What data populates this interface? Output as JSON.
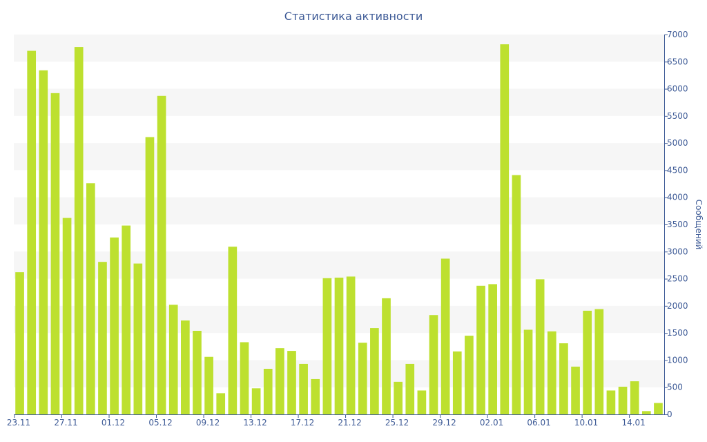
{
  "chart_data": {
    "type": "bar",
    "title": "Статистика активности",
    "ylabel": "Сообщений",
    "ylim": [
      0,
      7000
    ],
    "yticks": [
      0,
      500,
      1000,
      1500,
      2000,
      2500,
      3000,
      3500,
      4000,
      4500,
      5000,
      5500,
      6000,
      6500,
      7000
    ],
    "x_tick_labels": [
      "23.11",
      "27.11",
      "01.12",
      "05.12",
      "09.12",
      "13.12",
      "17.12",
      "21.12",
      "25.12",
      "29.12",
      "02.01",
      "06.01",
      "10.01",
      "14.01"
    ],
    "categories": [
      "23.11",
      "24.11",
      "25.11",
      "26.11",
      "27.11",
      "28.11",
      "29.11",
      "30.11",
      "01.12",
      "02.12",
      "03.12",
      "04.12",
      "05.12",
      "06.12",
      "07.12",
      "08.12",
      "09.12",
      "10.12",
      "11.12",
      "12.12",
      "13.12",
      "14.12",
      "15.12",
      "16.12",
      "17.12",
      "18.12",
      "19.12",
      "20.12",
      "21.12",
      "22.12",
      "23.12",
      "24.12",
      "25.12",
      "26.12",
      "27.12",
      "28.12",
      "29.12",
      "30.12",
      "31.12",
      "01.01",
      "02.01",
      "03.01",
      "04.01",
      "05.01",
      "06.01",
      "07.01",
      "08.01",
      "09.01",
      "10.01",
      "11.01",
      "12.01",
      "13.01",
      "14.01",
      "15.01",
      "16.01"
    ],
    "values": [
      2620,
      6700,
      6340,
      5920,
      3620,
      6770,
      4260,
      2810,
      3260,
      3480,
      2780,
      5110,
      5870,
      2020,
      1730,
      1540,
      1060,
      390,
      3090,
      1330,
      480,
      840,
      1220,
      1170,
      930,
      650,
      2510,
      2520,
      2540,
      1320,
      1590,
      2140,
      600,
      930,
      440,
      1830,
      2870,
      1160,
      1450,
      2370,
      2400,
      6820,
      4410,
      1560,
      2490,
      1530,
      1310,
      880,
      1910,
      1940,
      440,
      510,
      610,
      60,
      210
    ],
    "grid": "horizontal alternating bands",
    "legend": "none",
    "colors": {
      "bar": "#bde02f",
      "band": "#f6f6f6",
      "text": "#3d5a96",
      "axis": "#3d5a96"
    }
  }
}
